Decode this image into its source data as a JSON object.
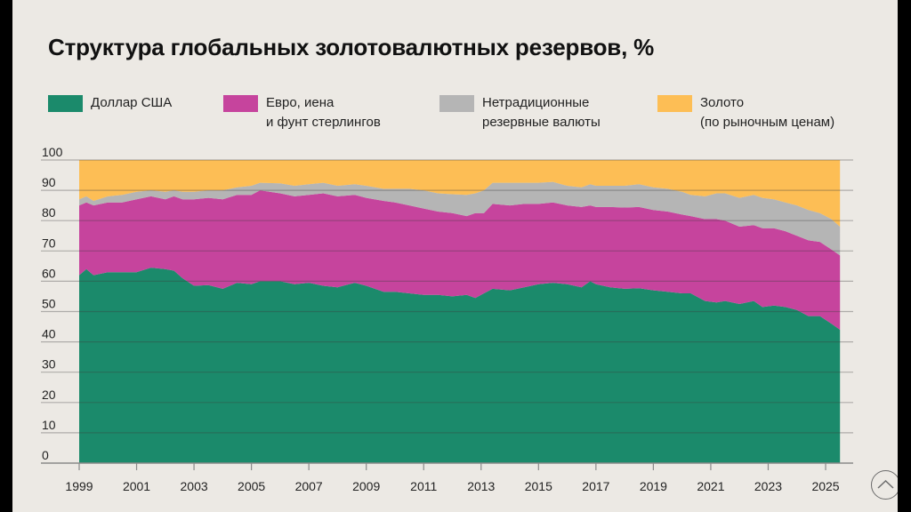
{
  "chart_data": {
    "type": "area",
    "stacked": true,
    "title": "Структура глобальных золотовалютных резервов, %",
    "xlabel": "",
    "ylabel": "",
    "ylim": [
      0,
      100
    ],
    "xlim": [
      1999,
      2025.5
    ],
    "yticks": [
      "0",
      "10",
      "20",
      "30",
      "40",
      "50",
      "60",
      "70",
      "80",
      "90",
      "100"
    ],
    "xticks": [
      "1999",
      "2001",
      "2003",
      "2005",
      "2007",
      "2009",
      "2011",
      "2013",
      "2015",
      "2017",
      "2019",
      "2021",
      "2023",
      "2025"
    ],
    "grid": true,
    "legend_position": "top",
    "x": [
      1999.0,
      1999.25,
      1999.5,
      2000.0,
      2000.5,
      2001.0,
      2001.5,
      2002.0,
      2002.3,
      2002.6,
      2003.0,
      2003.5,
      2004.0,
      2004.5,
      2005.0,
      2005.3,
      2006.0,
      2006.5,
      2007.0,
      2007.5,
      2008.0,
      2008.6,
      2009.0,
      2009.6,
      2010.0,
      2010.5,
      2011.0,
      2011.5,
      2012.0,
      2012.5,
      2012.8,
      2013.1,
      2013.4,
      2014.0,
      2014.5,
      2015.0,
      2015.5,
      2016.0,
      2016.5,
      2016.8,
      2017.0,
      2017.5,
      2018.0,
      2018.5,
      2019.0,
      2019.5,
      2020.0,
      2020.3,
      2020.8,
      2021.2,
      2021.5,
      2022.0,
      2022.5,
      2022.8,
      2023.2,
      2023.6,
      2024.0,
      2024.4,
      2024.8,
      2025.2,
      2025.5
    ],
    "series": [
      {
        "name": "Доллар США",
        "color": "#1B8A6B",
        "values": [
          62.0,
          64.0,
          62.0,
          63.0,
          63.0,
          63.0,
          64.5,
          64.0,
          63.5,
          61.0,
          58.5,
          58.7,
          57.5,
          59.5,
          59.0,
          60.0,
          60.0,
          59.0,
          59.5,
          58.5,
          58.0,
          59.5,
          58.5,
          56.5,
          56.5,
          56.0,
          55.5,
          55.5,
          55.0,
          55.5,
          54.5,
          56.0,
          57.5,
          57.0,
          58.0,
          59.0,
          59.5,
          59.0,
          58.0,
          60.0,
          59.0,
          58.0,
          57.5,
          57.7,
          57.0,
          56.5,
          56.0,
          56.0,
          53.5,
          53.0,
          53.5,
          52.5,
          53.5,
          51.5,
          52.0,
          51.5,
          50.5,
          48.5,
          48.5,
          46.0,
          44.0
        ]
      },
      {
        "name": "Евро, иена и фунт стерлингов",
        "color": "#C6449D",
        "values": [
          23.0,
          22.0,
          23.0,
          23.0,
          23.0,
          24.0,
          23.5,
          23.0,
          24.5,
          26.0,
          28.5,
          28.8,
          29.5,
          29.0,
          29.5,
          30.0,
          29.0,
          29.0,
          29.0,
          30.5,
          30.0,
          29.0,
          29.0,
          30.0,
          29.5,
          29.0,
          28.5,
          27.5,
          27.5,
          26.0,
          28.0,
          26.5,
          28.0,
          28.0,
          27.5,
          26.5,
          26.5,
          26.0,
          26.5,
          25.0,
          25.5,
          26.5,
          26.8,
          26.8,
          26.5,
          26.5,
          26.0,
          25.5,
          27.0,
          27.5,
          26.5,
          25.5,
          25.0,
          26.0,
          25.5,
          25.0,
          24.5,
          25.0,
          24.5,
          24.5,
          24.5
        ]
      },
      {
        "name": "Нетрадиционные резервные валюты",
        "color": "#B5B5B5",
        "values": [
          2.0,
          2.0,
          1.5,
          2.0,
          2.5,
          2.5,
          2.0,
          2.5,
          2.0,
          2.5,
          2.5,
          2.5,
          3.0,
          2.5,
          3.0,
          2.5,
          3.3,
          3.5,
          3.5,
          3.5,
          3.5,
          3.5,
          4.0,
          4.0,
          4.5,
          5.5,
          6.0,
          6.0,
          6.2,
          7.0,
          6.5,
          7.5,
          7.0,
          7.5,
          7.0,
          7.0,
          6.8,
          6.5,
          6.5,
          7.0,
          7.0,
          7.0,
          7.2,
          7.5,
          7.5,
          7.5,
          7.5,
          7.0,
          7.5,
          8.5,
          9.0,
          9.5,
          10.0,
          10.0,
          9.5,
          9.5,
          10.0,
          10.0,
          9.5,
          10.0,
          9.5
        ]
      },
      {
        "name": "Золото (по рыночным ценам)",
        "color": "#FDBE55",
        "values": [
          13.0,
          12.0,
          13.5,
          12.0,
          11.5,
          10.5,
          10.0,
          10.5,
          10.0,
          10.5,
          10.5,
          10.0,
          10.0,
          9.0,
          8.5,
          7.5,
          7.7,
          8.5,
          8.0,
          7.5,
          8.5,
          8.0,
          8.5,
          9.5,
          9.5,
          9.5,
          10.0,
          11.0,
          11.3,
          11.5,
          11.0,
          10.0,
          7.5,
          7.5,
          7.5,
          7.5,
          7.2,
          8.5,
          9.0,
          8.0,
          8.5,
          8.5,
          8.5,
          8.0,
          9.0,
          9.5,
          10.5,
          11.5,
          12.0,
          11.0,
          11.0,
          12.5,
          11.5,
          12.5,
          13.0,
          14.0,
          15.0,
          16.5,
          17.5,
          19.5,
          22.0
        ]
      }
    ]
  },
  "legend": [
    {
      "line1": "Доллар США",
      "line2": "",
      "color": "#1B8A6B"
    },
    {
      "line1": "Евро, иена",
      "line2": "и фунт стерлингов",
      "color": "#C6449D"
    },
    {
      "line1": "Нетрадиционные",
      "line2": "резервные валюты",
      "color": "#B5B5B5"
    },
    {
      "line1": "Золото",
      "line2": "(по рыночным ценам)",
      "color": "#FDBE55"
    }
  ],
  "ui": {
    "scroll_top_icon": "chevron-up-icon"
  }
}
